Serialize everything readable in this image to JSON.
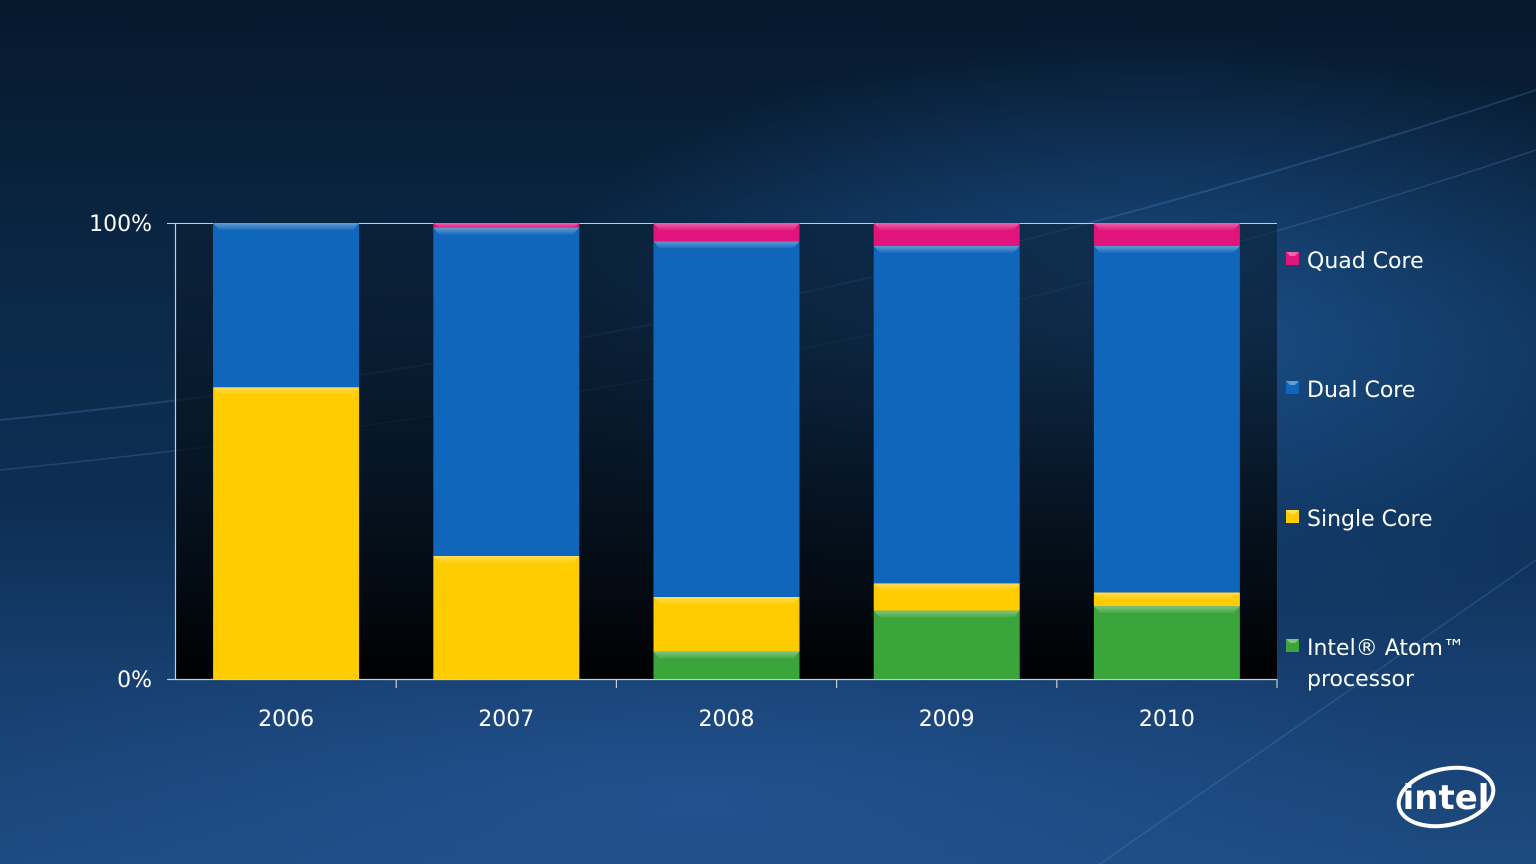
{
  "chart_data": {
    "type": "bar",
    "stacked": true,
    "categories": [
      "2006",
      "2007",
      "2008",
      "2009",
      "2010"
    ],
    "series": [
      {
        "name": "Intel® Atom™ processor",
        "values": [
          0,
          0,
          6,
          15,
          16
        ],
        "color": "#3aa53a"
      },
      {
        "name": "Single Core",
        "values": [
          64,
          27,
          12,
          6,
          3
        ],
        "color": "#ffcc00"
      },
      {
        "name": "Dual Core",
        "values": [
          36,
          72,
          78,
          74,
          76
        ],
        "color": "#1066bb"
      },
      {
        "name": "Quad Core",
        "values": [
          0,
          1,
          4,
          5,
          5
        ],
        "color": "#e0147a"
      }
    ],
    "y_ticks": [
      "0%",
      "100%"
    ],
    "ylim": [
      0,
      100
    ],
    "grid": false,
    "legend_position": "right"
  },
  "legend": [
    {
      "lines": [
        "Quad Core"
      ],
      "color": "#e0147a"
    },
    {
      "lines": [
        "Dual Core"
      ],
      "color": "#1066bb"
    },
    {
      "lines": [
        "Single Core"
      ],
      "color": "#ffcc00"
    },
    {
      "lines": [
        "Intel® Atom™",
        "processor"
      ],
      "color": "#3aa53a"
    }
  ],
  "logo": {
    "text": "intel",
    "icon": "intel-logo-icon"
  }
}
